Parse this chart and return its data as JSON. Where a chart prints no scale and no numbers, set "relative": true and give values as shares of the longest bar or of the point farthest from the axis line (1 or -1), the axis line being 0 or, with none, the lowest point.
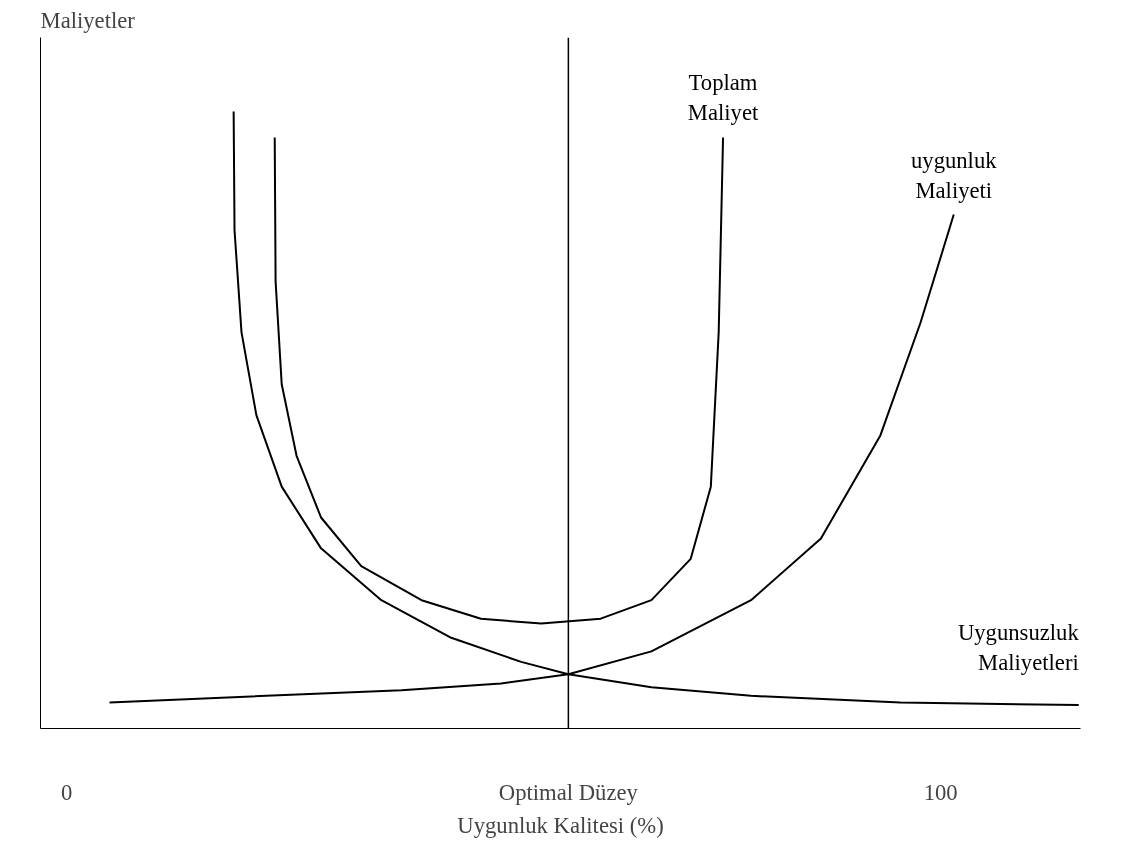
{
  "chart_data": {
    "type": "line",
    "relative": true,
    "ylabel": "Maliyetler",
    "xlabel": "Uygunluk Kalitesi (%)",
    "xlim": [
      -3,
      116
    ],
    "xticks": [
      {
        "value": 0,
        "label": "0"
      },
      {
        "value": 57.4,
        "label": "Optimal Düzey"
      },
      {
        "value": 100,
        "label": "100"
      }
    ],
    "tick_labels": "x",
    "grid": false,
    "marker": "none",
    "line_style": "solid",
    "ref_lines": [
      {
        "axis": "x",
        "value": 57.4,
        "label": null,
        "color": "#000000"
      }
    ],
    "series": [
      {
        "name": "Uygunsuzluk\nMaliyetleri",
        "color": "#000000",
        "x": [
          19.1,
          19.2,
          20.0,
          21.7,
          24.6,
          29.1,
          36.0,
          44.0,
          52.0,
          57.4,
          66.9,
          78.3,
          95.4,
          115.8
        ],
        "values": [
          1.0,
          0.808,
          0.642,
          0.508,
          0.392,
          0.292,
          0.208,
          0.147,
          0.108,
          0.088,
          0.067,
          0.053,
          0.042,
          0.038
        ]
      },
      {
        "name": "Toplam\nMaliyet",
        "color": "#000000",
        "x": [
          23.8,
          23.9,
          24.6,
          26.3,
          29.1,
          33.7,
          40.6,
          47.4,
          54.3,
          61.1,
          66.9,
          71.4,
          73.7,
          74.6,
          75.1
        ],
        "values": [
          0.958,
          0.725,
          0.558,
          0.442,
          0.342,
          0.263,
          0.208,
          0.178,
          0.17,
          0.178,
          0.208,
          0.275,
          0.392,
          0.642,
          0.958
        ]
      },
      {
        "name": "uygunluk\nMaliyeti",
        "color": "#000000",
        "x": [
          4.9,
          21.1,
          38.3,
          49.7,
          57.4,
          66.9,
          78.3,
          86.3,
          93.1,
          97.7,
          101.5
        ],
        "values": [
          0.042,
          0.052,
          0.062,
          0.073,
          0.088,
          0.125,
          0.208,
          0.308,
          0.475,
          0.658,
          0.833
        ]
      }
    ]
  }
}
